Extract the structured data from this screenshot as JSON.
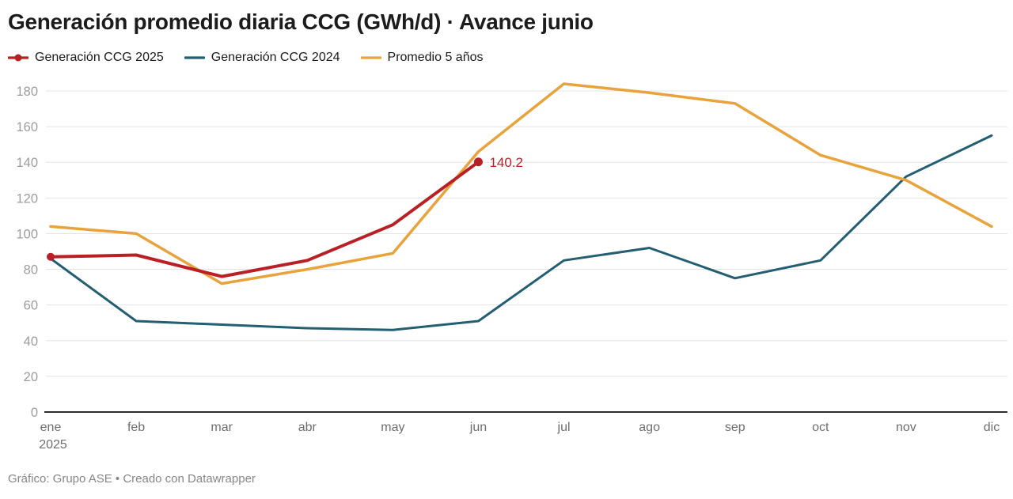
{
  "header": {
    "title": "Generación promedio diaria CCG (GWh/d) · Avance junio"
  },
  "chart_data": {
    "type": "line",
    "title": "Generación promedio diaria CCG (GWh/d) · Avance junio",
    "x": [
      "ene",
      "feb",
      "mar",
      "abr",
      "may",
      "jun",
      "jul",
      "ago",
      "sep",
      "oct",
      "nov",
      "dic"
    ],
    "x_axis_sub_label": "2025",
    "ylim": [
      0,
      180
    ],
    "ytick_step": 20,
    "grid": "horizontal",
    "legend_position": "top",
    "series": [
      {
        "name": "Generación CCG 2025",
        "color": "#b92025",
        "line_width": 4,
        "marker_start": true,
        "marker_end": true,
        "end_label": "140.2",
        "values": [
          87,
          88,
          76,
          85,
          105,
          140.2
        ]
      },
      {
        "name": "Generación CCG 2024",
        "color": "#235e72",
        "line_width": 3,
        "values": [
          86,
          51,
          49,
          47,
          46,
          51,
          85,
          92,
          75,
          85,
          132,
          155
        ]
      },
      {
        "name": "Promedio 5 años",
        "color": "#e8a33d",
        "line_width": 3.5,
        "values": [
          104,
          100,
          72,
          80,
          89,
          146,
          184,
          179,
          173,
          144,
          130,
          104
        ]
      }
    ]
  },
  "footer": {
    "credit": "Gráfico: Grupo ASE • Creado con Datawrapper"
  }
}
